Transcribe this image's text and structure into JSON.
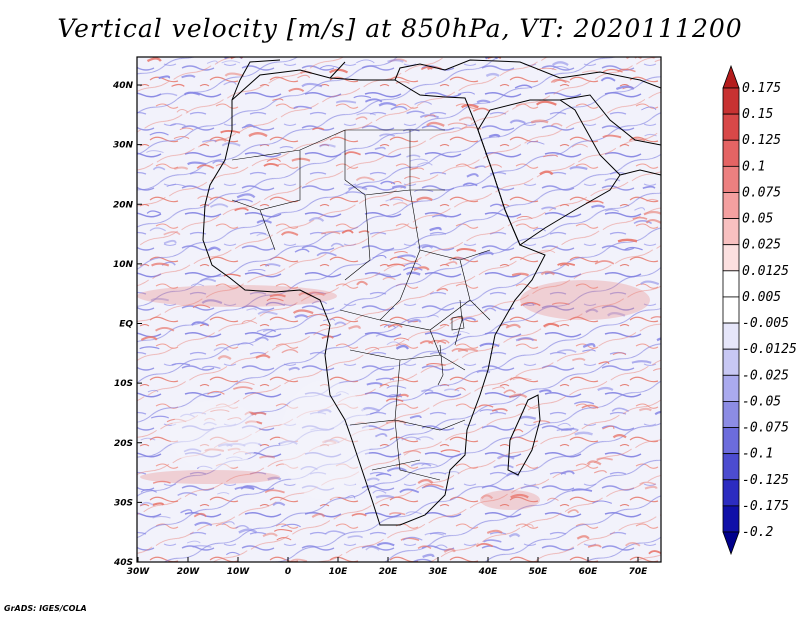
{
  "title": "Vertical velocity [m/s] at 850hPa, VT: 2020111200",
  "credit": "GrADS: IGES/COLA",
  "map": {
    "x_ticks": [
      "30W",
      "20W",
      "10W",
      "0",
      "10E",
      "20E",
      "30E",
      "40E",
      "50E",
      "60E",
      "70E"
    ],
    "y_ticks": [
      "40N",
      "30N",
      "20N",
      "10N",
      "EQ",
      "10S",
      "20S",
      "30S",
      "40S"
    ],
    "field_colors": {
      "ascent": "#e8786e",
      "descent": "#8a8ae6",
      "neutral": "#f4f4fc"
    }
  },
  "colorbar": {
    "labels": [
      "0.175",
      "0.15",
      "0.125",
      "0.1",
      "0.075",
      "0.05",
      "0.025",
      "0.0125",
      "0.005",
      "-0.005",
      "-0.0125",
      "-0.025",
      "-0.05",
      "-0.075",
      "-0.1",
      "-0.125",
      "-0.175",
      "-0.2"
    ],
    "colors": [
      "#b41c1c",
      "#c83232",
      "#d84848",
      "#e46464",
      "#ec8080",
      "#f4a0a0",
      "#f8c0c0",
      "#fce0e0",
      "#ffffff",
      "#ffffff",
      "#e6e6fa",
      "#c8c8f4",
      "#aaaaee",
      "#8c8ce4",
      "#6c6cdc",
      "#4c4cd0",
      "#2c2cc0",
      "#1010a8",
      "#00008c"
    ]
  }
}
